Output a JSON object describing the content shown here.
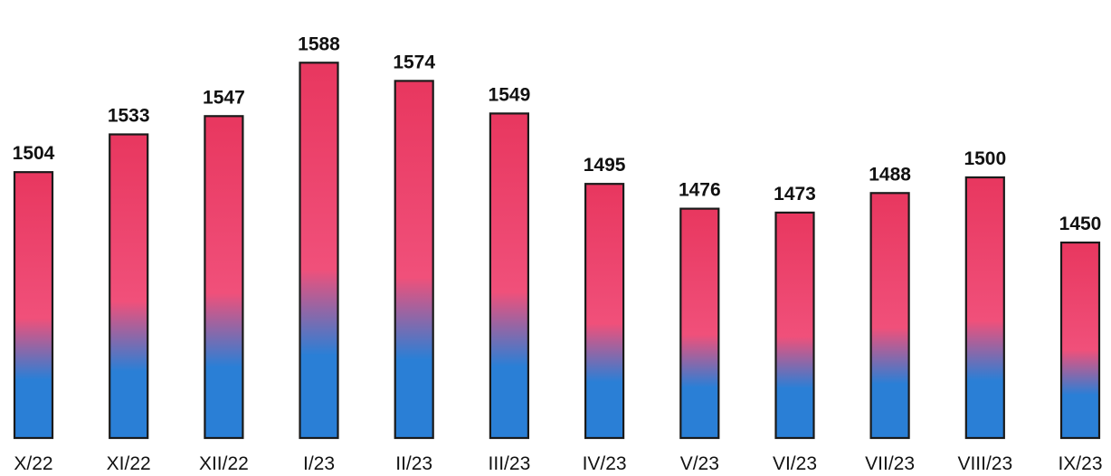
{
  "chart_data": {
    "type": "bar",
    "categories": [
      "X/22",
      "XI/22",
      "XII/22",
      "I/23",
      "II/23",
      "III/23",
      "IV/23",
      "V/23",
      "VI/23",
      "VII/23",
      "VIII/23",
      "IX/23"
    ],
    "values": [
      1504,
      1533,
      1547,
      1588,
      1574,
      1549,
      1495,
      1476,
      1473,
      1488,
      1500,
      1450
    ],
    "title": "",
    "xlabel": "",
    "ylabel": "",
    "ylim": [
      1300,
      1600
    ],
    "data_labels": true,
    "grid": false,
    "legend": "none",
    "bar_gradient": {
      "top": "#e8375f",
      "middle": "#f0507a",
      "bottom": "#2a7fd6"
    }
  }
}
